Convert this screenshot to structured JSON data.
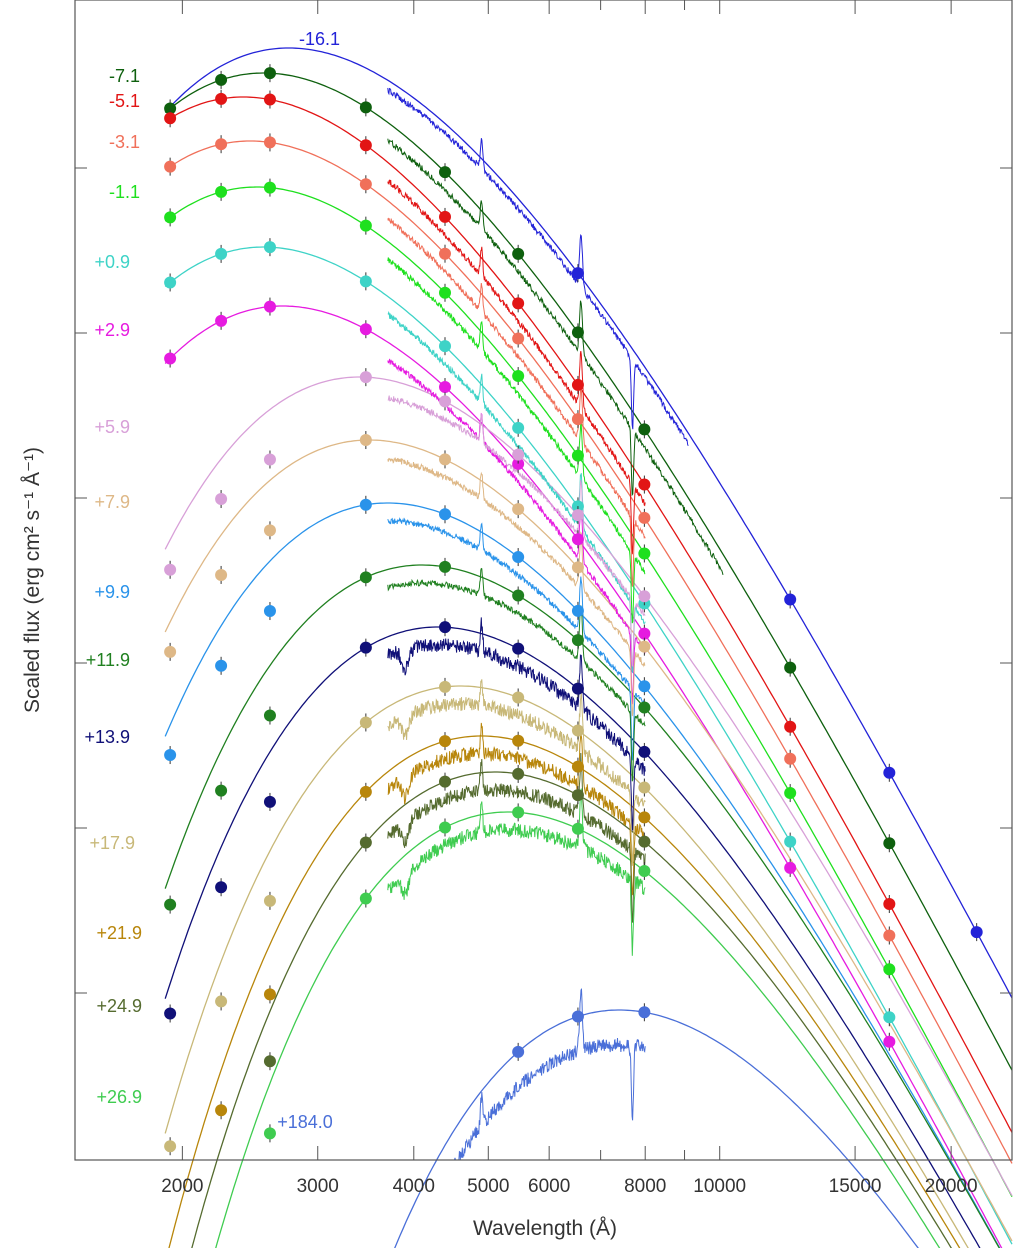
{
  "chart_data": {
    "type": "line",
    "xlabel": "Wavelength (Å)",
    "ylabel": "Scaled flux (erg cm² s⁻¹ Å⁻¹)",
    "xscale": "log",
    "xlim": [
      1450,
      24000
    ],
    "x_ticks": [
      2000,
      3000,
      4000,
      5000,
      6000,
      8000,
      10000,
      15000,
      20000
    ],
    "x_minor_ticks": [
      7000,
      9000
    ],
    "grid": false,
    "spectrum_range": [
      3700,
      8000
    ],
    "photometry_bands": [
      1928,
      2246,
      2600,
      3465,
      4392,
      5468,
      6540,
      7980,
      12350,
      16620,
      21590
    ],
    "series": [
      {
        "name": "-16.1",
        "color": "#2323d8",
        "fit_peak_wavelength": 2750,
        "fit_peak_flux": 8.0,
        "spectrum_range": [
          3700,
          9100
        ],
        "phot": [
          [
            6540,
            5.5
          ],
          [
            12350,
            2.3
          ],
          [
            16620,
            1.5
          ],
          [
            21590,
            1.25
          ]
        ]
      },
      {
        "name": "-7.1",
        "color": "#0e600e",
        "fit_peak_wavelength": 2550,
        "fit_peak_flux": 5.2,
        "spectrum_range": [
          3700,
          10100
        ],
        "phot": [
          [
            1928,
            5.0
          ],
          [
            2246,
            5.4
          ],
          [
            2600,
            5.2
          ],
          [
            3465,
            4.8
          ],
          [
            4392,
            3.9
          ],
          [
            5468,
            3.0
          ],
          [
            6540,
            2.6
          ],
          [
            7980,
            2.0
          ],
          [
            12350,
            1.3
          ],
          [
            16620,
            1.0
          ]
        ]
      },
      {
        "name": "-5.1",
        "color": "#e21515",
        "fit_peak_wavelength": 2400,
        "fit_peak_flux": 4.2,
        "phot": [
          [
            1928,
            4.2
          ],
          [
            2246,
            4.2
          ],
          [
            2600,
            4.0
          ],
          [
            3465,
            3.6
          ],
          [
            4392,
            2.9
          ],
          [
            5468,
            2.4
          ],
          [
            6540,
            2.0
          ],
          [
            7980,
            1.6
          ],
          [
            12350,
            1.05
          ],
          [
            16620,
            0.78
          ]
        ]
      },
      {
        "name": "-3.1",
        "color": "#f0705a",
        "fit_peak_wavelength": 2450,
        "fit_peak_flux": 3.4,
        "phot": [
          [
            1928,
            3.4
          ],
          [
            2246,
            3.3
          ],
          [
            2600,
            3.2
          ],
          [
            3465,
            3.0
          ],
          [
            4392,
            2.5
          ],
          [
            5468,
            2.0
          ],
          [
            6540,
            1.7
          ],
          [
            7980,
            1.4
          ],
          [
            12350,
            0.95
          ],
          [
            16620,
            0.7
          ]
        ]
      },
      {
        "name": "-1.1",
        "color": "#1ee01e",
        "fit_peak_wavelength": 2500,
        "fit_peak_flux": 2.9,
        "phot": [
          [
            1928,
            2.9
          ],
          [
            2246,
            2.9
          ],
          [
            2600,
            2.8
          ],
          [
            3465,
            2.7
          ],
          [
            4392,
            2.3
          ],
          [
            5468,
            1.85
          ],
          [
            6540,
            1.55
          ],
          [
            7980,
            1.25
          ],
          [
            12350,
            0.88
          ],
          [
            16620,
            0.64
          ]
        ]
      },
      {
        "name": "+0.9",
        "color": "#3ed3c7",
        "fit_peak_wavelength": 2550,
        "fit_peak_flux": 2.3,
        "phot": [
          [
            1928,
            2.3
          ],
          [
            2246,
            2.3
          ],
          [
            2600,
            2.25
          ],
          [
            3465,
            2.2
          ],
          [
            4392,
            1.9
          ],
          [
            5468,
            1.6
          ],
          [
            6540,
            1.35
          ],
          [
            7980,
            1.1
          ],
          [
            12350,
            0.8
          ],
          [
            16620,
            0.56
          ]
        ]
      },
      {
        "name": "+2.9",
        "color": "#e61be0",
        "fit_peak_wavelength": 2700,
        "fit_peak_flux": 1.85,
        "phot": [
          [
            1928,
            1.8
          ],
          [
            2246,
            1.85
          ],
          [
            2600,
            1.85
          ],
          [
            3465,
            1.85
          ],
          [
            4392,
            1.6
          ],
          [
            5468,
            1.35
          ],
          [
            6540,
            1.15
          ],
          [
            7980,
            0.97
          ],
          [
            12350,
            0.68
          ],
          [
            16620,
            0.48
          ]
        ]
      },
      {
        "name": "+5.9",
        "color": "#d8a0d8",
        "fit_peak_wavelength": 3400,
        "fit_peak_flux": 1.45
      },
      {
        "name": "+7.9",
        "color": "#deb887",
        "fit_peak_wavelength": 3500,
        "fit_peak_flux": 1.2
      },
      {
        "name": "+9.9",
        "color": "#2a93ea",
        "fit_peak_wavelength": 3700,
        "fit_peak_flux": 1.0
      },
      {
        "name": "+11.9",
        "color": "#208020",
        "fit_peak_wavelength": 4100,
        "fit_peak_flux": 0.8
      },
      {
        "name": "+13.9",
        "color": "#101078",
        "fit_peak_wavelength": 4300,
        "fit_peak_flux": 0.66
      },
      {
        "name": "+17.9",
        "color": "#c8b878",
        "fit_peak_wavelength": 4600,
        "fit_peak_flux": 0.52
      },
      {
        "name": "+21.9",
        "color": "#b8860b",
        "fit_peak_wavelength": 4900,
        "fit_peak_flux": 0.42
      },
      {
        "name": "+24.9",
        "color": "#556b2f",
        "fit_peak_wavelength": 5100,
        "fit_peak_flux": 0.33
      },
      {
        "name": "+26.9",
        "color": "#3fcc50",
        "fit_peak_wavelength": 5300,
        "fit_peak_flux": 0.26
      },
      {
        "name": "+184.0",
        "color": "#4a6fd8",
        "fit_peak_wavelength": 7400,
        "fit_peak_flux": 0.13,
        "spectrum_range": [
          3750,
          8000
        ]
      }
    ]
  }
}
